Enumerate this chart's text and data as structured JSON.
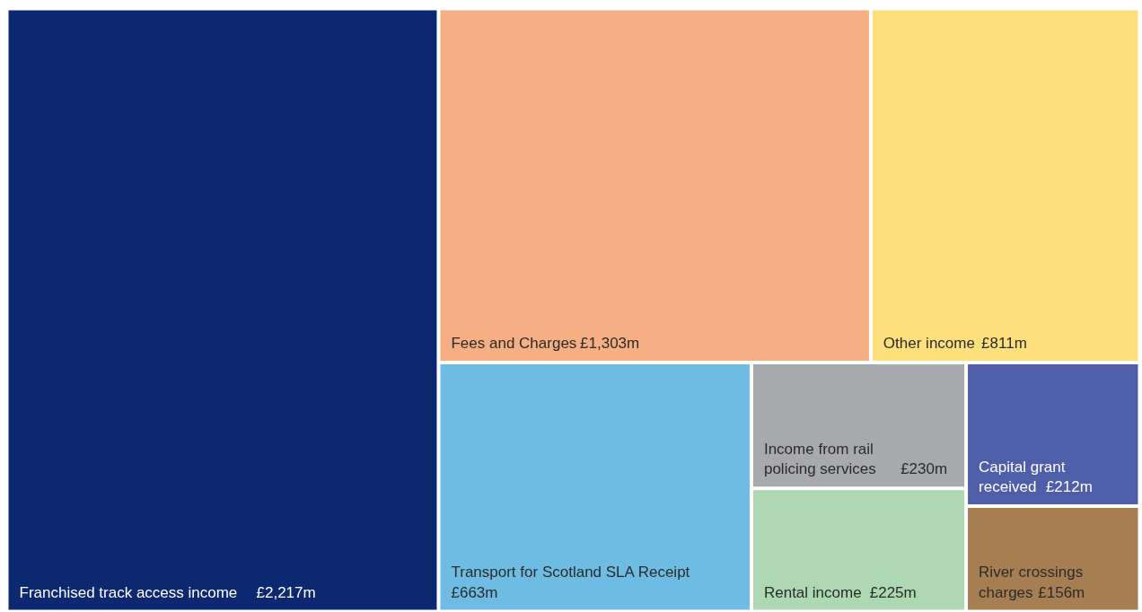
{
  "chart_data": {
    "type": "other",
    "categories": [
      "Franchised track access income",
      "Fees and Charges",
      "Other income",
      "Transport for Scotland SLA Receipt",
      "Income from rail policing services",
      "Rental income",
      "Capital grant received",
      "River crossings charges"
    ],
    "values": [
      2217,
      1303,
      811,
      663,
      230,
      225,
      212,
      156
    ],
    "value_labels": [
      "£2,217m",
      "£1,303m",
      "£811m",
      "£663m",
      "£230m",
      "£225m",
      "£212m",
      "£156m"
    ],
    "colors": [
      "#0c2870",
      "#f6ae83",
      "#fde07c",
      "#6ebbe3",
      "#a7a9ac",
      "#add8b2",
      "#4f5ea9",
      "#a77d52"
    ],
    "data_labels": true
  }
}
